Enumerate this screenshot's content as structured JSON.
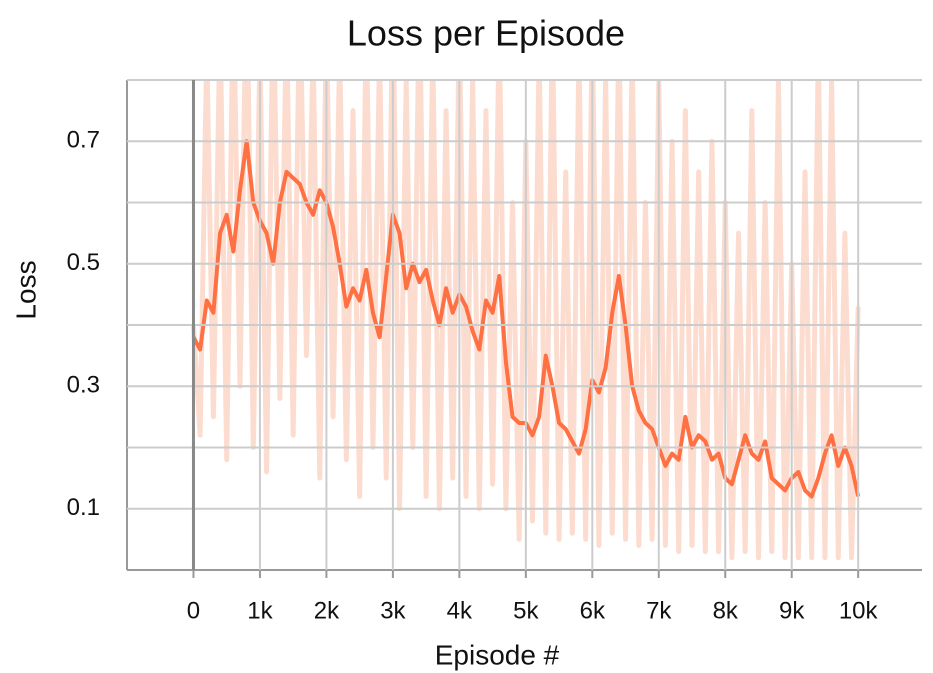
{
  "chart_data": {
    "type": "line",
    "title": "Loss per Episode",
    "x_label": "Episode #",
    "y_label": "Loss",
    "x": [
      0,
      100,
      200,
      300,
      400,
      500,
      600,
      700,
      800,
      900,
      1000,
      1100,
      1200,
      1300,
      1400,
      1500,
      1600,
      1700,
      1800,
      1900,
      2000,
      2100,
      2200,
      2300,
      2400,
      2500,
      2600,
      2700,
      2800,
      2900,
      3000,
      3100,
      3200,
      3300,
      3400,
      3500,
      3600,
      3700,
      3800,
      3900,
      4000,
      4100,
      4200,
      4300,
      4400,
      4500,
      4600,
      4700,
      4800,
      4900,
      5000,
      5100,
      5200,
      5300,
      5400,
      5500,
      5600,
      5700,
      5800,
      5900,
      6000,
      6100,
      6200,
      6300,
      6400,
      6500,
      6600,
      6700,
      6800,
      6900,
      7000,
      7100,
      7200,
      7300,
      7400,
      7500,
      7600,
      7700,
      7800,
      7900,
      8000,
      8100,
      8200,
      8300,
      8400,
      8500,
      8600,
      8700,
      8800,
      8900,
      9000,
      9100,
      9200,
      9300,
      9400,
      9500,
      9600,
      9700,
      9800,
      9900,
      10000
    ],
    "series": [
      {
        "color": "#fddcd0",
        "values": [
          0.4,
          0.22,
          0.85,
          0.25,
          0.9,
          0.18,
          0.95,
          0.3,
          1.0,
          0.2,
          0.85,
          0.16,
          0.95,
          0.28,
          0.9,
          0.22,
          0.95,
          0.35,
          0.85,
          0.15,
          0.9,
          0.25,
          0.85,
          0.18,
          0.75,
          0.12,
          0.9,
          0.2,
          0.85,
          0.15,
          0.95,
          0.1,
          0.8,
          0.2,
          0.95,
          0.12,
          0.85,
          0.1,
          0.75,
          0.15,
          0.9,
          0.12,
          0.8,
          0.1,
          0.75,
          0.14,
          0.9,
          0.1,
          0.6,
          0.05,
          0.7,
          0.08,
          0.85,
          0.06,
          0.9,
          0.05,
          0.65,
          0.06,
          0.85,
          0.05,
          0.9,
          0.04,
          0.8,
          0.06,
          0.9,
          0.05,
          0.85,
          0.04,
          0.6,
          0.05,
          0.8,
          0.04,
          0.7,
          0.03,
          0.75,
          0.04,
          0.65,
          0.03,
          0.7,
          0.03,
          0.6,
          0.02,
          0.55,
          0.03,
          0.75,
          0.02,
          0.6,
          0.03,
          0.8,
          0.02,
          0.5,
          0.02,
          0.65,
          0.02,
          0.85,
          0.02,
          0.8,
          0.02,
          0.55,
          0.02,
          0.43
        ]
      },
      {
        "color": "#ff7043",
        "values": [
          0.38,
          0.36,
          0.44,
          0.42,
          0.55,
          0.58,
          0.52,
          0.62,
          0.7,
          0.6,
          0.57,
          0.55,
          0.5,
          0.6,
          0.65,
          0.64,
          0.63,
          0.6,
          0.58,
          0.62,
          0.6,
          0.56,
          0.5,
          0.43,
          0.46,
          0.44,
          0.49,
          0.42,
          0.38,
          0.48,
          0.58,
          0.55,
          0.46,
          0.5,
          0.47,
          0.49,
          0.44,
          0.4,
          0.46,
          0.42,
          0.45,
          0.43,
          0.39,
          0.36,
          0.44,
          0.42,
          0.48,
          0.34,
          0.25,
          0.24,
          0.24,
          0.22,
          0.25,
          0.35,
          0.3,
          0.24,
          0.23,
          0.21,
          0.19,
          0.23,
          0.31,
          0.29,
          0.33,
          0.42,
          0.48,
          0.4,
          0.3,
          0.26,
          0.24,
          0.23,
          0.2,
          0.17,
          0.19,
          0.18,
          0.25,
          0.2,
          0.22,
          0.21,
          0.18,
          0.19,
          0.15,
          0.14,
          0.18,
          0.22,
          0.19,
          0.18,
          0.21,
          0.15,
          0.14,
          0.13,
          0.15,
          0.16,
          0.13,
          0.12,
          0.15,
          0.19,
          0.22,
          0.17,
          0.2,
          0.17,
          0.12
        ]
      }
    ],
    "xlim": [
      -1000,
      10960
    ],
    "ylim": [
      0,
      0.8
    ],
    "xticks": [
      0,
      {
        "value": 1000,
        "label": "1k"
      },
      {
        "value": 2000,
        "label": "2k"
      },
      {
        "value": 3000,
        "label": "3k"
      },
      {
        "value": 4000,
        "label": "4k"
      },
      {
        "value": 5000,
        "label": "5k"
      },
      {
        "value": 6000,
        "label": "6k"
      },
      {
        "value": 7000,
        "label": "7k"
      },
      {
        "value": 8000,
        "label": "8k"
      },
      {
        "value": 9000,
        "label": "9k"
      },
      {
        "value": 10000,
        "label": "10k"
      }
    ],
    "yticks": [
      0.1,
      0.3,
      0.5,
      0.7
    ],
    "yminorticks": [
      0.2,
      0.4,
      0.6,
      0.8
    ],
    "grid": true
  }
}
